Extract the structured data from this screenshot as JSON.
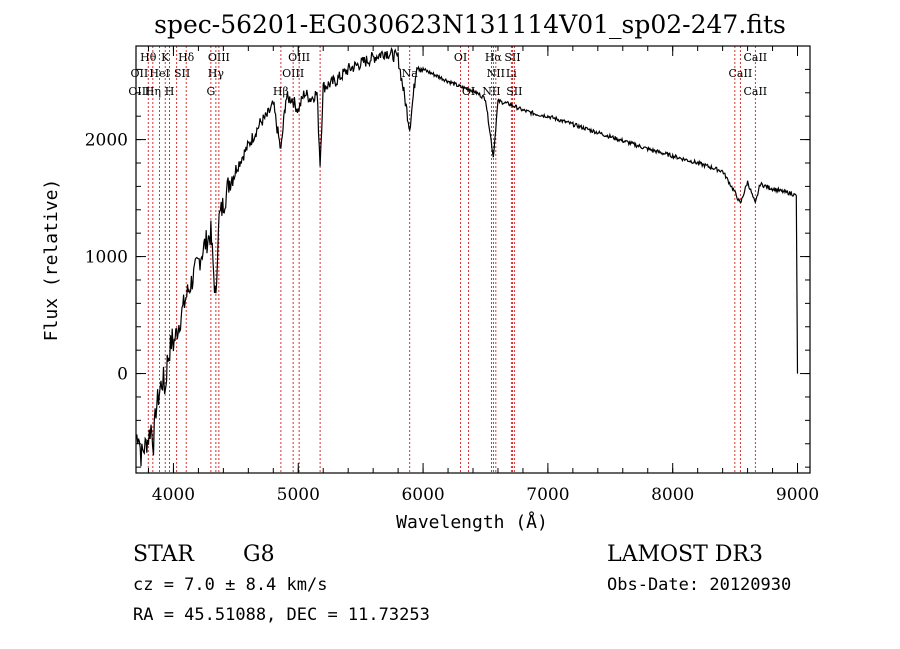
{
  "chart_data": {
    "type": "line",
    "title": "spec-56201-EG030623N131114V01_sp02-247.fits",
    "xlabel": "Wavelength (Å)",
    "ylabel": "Flux (relative)",
    "xlim": [
      3700,
      9100
    ],
    "ylim": [
      -850,
      2800
    ],
    "xticks": [
      4000,
      5000,
      6000,
      7000,
      8000,
      9000
    ],
    "yticks": [
      0,
      1000,
      2000
    ],
    "series": [
      {
        "name": "flux",
        "x": [
          3700,
          3720,
          3740,
          3760,
          3780,
          3800,
          3820,
          3840,
          3860,
          3880,
          3900,
          3920,
          3935,
          3950,
          3970,
          3990,
          4000,
          4050,
          4100,
          4150,
          4200,
          4250,
          4300,
          4340,
          4360,
          4400,
          4450,
          4500,
          4550,
          4600,
          4650,
          4700,
          4750,
          4800,
          4861,
          4900,
          4950,
          5000,
          5050,
          5100,
          5150,
          5175,
          5200,
          5300,
          5400,
          5500,
          5600,
          5700,
          5800,
          5893,
          5950,
          6000,
          6100,
          6200,
          6300,
          6400,
          6500,
          6563,
          6600,
          6700,
          6800,
          6900,
          7000,
          7200,
          7400,
          7600,
          7800,
          8000,
          8200,
          8400,
          8498,
          8542,
          8600,
          8662,
          8700,
          8800,
          8900,
          8950,
          8990,
          9000
        ],
        "y": [
          -550,
          -500,
          -700,
          -650,
          -600,
          -550,
          -450,
          -600,
          -300,
          -200,
          -100,
          -50,
          -150,
          100,
          200,
          300,
          250,
          450,
          650,
          800,
          950,
          1100,
          1200,
          600,
          1300,
          1450,
          1650,
          1750,
          1850,
          1950,
          2050,
          2150,
          2200,
          2300,
          1900,
          2350,
          2350,
          2250,
          2400,
          2350,
          2400,
          1800,
          2450,
          2500,
          2600,
          2650,
          2700,
          2750,
          2700,
          2100,
          2650,
          2600,
          2550,
          2500,
          2450,
          2420,
          2350,
          1850,
          2330,
          2300,
          2250,
          2220,
          2200,
          2130,
          2060,
          1990,
          1920,
          1860,
          1800,
          1730,
          1550,
          1450,
          1640,
          1450,
          1620,
          1580,
          1550,
          1540,
          1520,
          0
        ]
      }
    ],
    "reference_lines": [
      3798,
      3835,
      3889,
      3934,
      3969,
      4026,
      4102,
      4300,
      4340,
      4364,
      4861,
      4959,
      5007,
      5175,
      5893,
      6300,
      6364,
      6548,
      6563,
      6583,
      6707,
      6716,
      6731,
      8498,
      8542,
      8662
    ],
    "line_labels": [
      {
        "text": "Hθ",
        "x": 3798,
        "row": 1
      },
      {
        "text": "K",
        "x": 3934,
        "row": 1
      },
      {
        "text": "Hδ",
        "x": 4102,
        "row": 1
      },
      {
        "text": "OIII",
        "x": 4364,
        "row": 1
      },
      {
        "text": "OIII",
        "x": 5007,
        "row": 1
      },
      {
        "text": "OI",
        "x": 6300,
        "row": 1
      },
      {
        "text": "Hα",
        "x": 6563,
        "row": 1
      },
      {
        "text": "SII",
        "x": 6716,
        "row": 1
      },
      {
        "text": "CaII",
        "x": 8662,
        "row": 1
      },
      {
        "text": "OII",
        "x": 3727,
        "row": 2
      },
      {
        "text": "HeI",
        "x": 3889,
        "row": 2
      },
      {
        "text": "SII",
        "x": 4069,
        "row": 2
      },
      {
        "text": "Hγ",
        "x": 4340,
        "row": 2
      },
      {
        "text": "OIII",
        "x": 4959,
        "row": 2
      },
      {
        "text": "Na",
        "x": 5893,
        "row": 2
      },
      {
        "text": "NII",
        "x": 6583,
        "row": 2
      },
      {
        "text": "Li",
        "x": 6707,
        "row": 2
      },
      {
        "text": "CaII",
        "x": 8542,
        "row": 2
      },
      {
        "text": "OIII",
        "x": 3727,
        "row": 3
      },
      {
        "text": "Hη",
        "x": 3835,
        "row": 3
      },
      {
        "text": "H",
        "x": 3969,
        "row": 3
      },
      {
        "text": "G",
        "x": 4300,
        "row": 3
      },
      {
        "text": "Hβ",
        "x": 4861,
        "row": 3
      },
      {
        "text": "OI",
        "x": 6364,
        "row": 3
      },
      {
        "text": "NII",
        "x": 6548,
        "row": 3
      },
      {
        "text": "SII",
        "x": 6731,
        "row": 3
      },
      {
        "text": "CaII",
        "x": 8662,
        "row": 3
      }
    ]
  },
  "info": {
    "class": "STAR",
    "subclass": "G8",
    "survey": "LAMOST DR3",
    "velocity": "cz =  7.0 ± 8.4 km/s",
    "obs_date": "Obs-Date: 20120930",
    "coords": "RA =  45.51088, DEC =  11.73253"
  },
  "colors": {
    "spectrum": "#000000",
    "reference_line": "#cc0000",
    "axis": "#000000"
  }
}
